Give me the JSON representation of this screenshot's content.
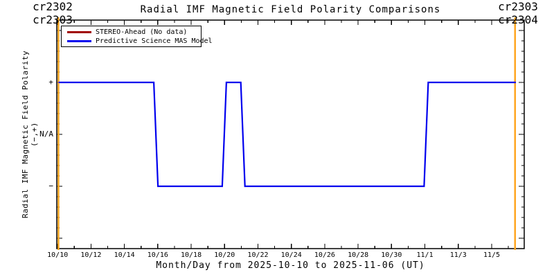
{
  "header": {
    "title": "Radial IMF Magnetic Field Polarity Comparisons",
    "carrington_left": "cr2302 cr2303",
    "carrington_right": "cr2303 cr2304"
  },
  "legend": {
    "items": [
      {
        "label": "STEREO-Ahead (No data)",
        "color": "#a00000"
      },
      {
        "label": "Predictive Science MAS Model",
        "color": "#0000ee"
      }
    ]
  },
  "colors": {
    "carrington_line": "#ffa520",
    "axis": "#000000",
    "background": "#ffffff"
  },
  "chart_data": {
    "type": "line",
    "subtype": "step-polarity",
    "title": "Radial IMF Magnetic Field Polarity Comparisons",
    "xlabel": "Month/Day from 2025-10-10 to 2025-11-06 (UT)",
    "ylabel": "Radial IMF Magnetic Field Polarity (−,+)",
    "x_unit": "days since 2025-10-10 00:00 UT",
    "xlim": [
      -0.05,
      27.95
    ],
    "ylim": [
      -2.2,
      2.2
    ],
    "grid": false,
    "legend_position": "top-left-inside",
    "x_ticks_major": [
      {
        "day": 0,
        "label": "10/10"
      },
      {
        "day": 2,
        "label": "10/12"
      },
      {
        "day": 4,
        "label": "10/14"
      },
      {
        "day": 6,
        "label": "10/16"
      },
      {
        "day": 8,
        "label": "10/18"
      },
      {
        "day": 10,
        "label": "10/20"
      },
      {
        "day": 12,
        "label": "10/22"
      },
      {
        "day": 14,
        "label": "10/24"
      },
      {
        "day": 16,
        "label": "10/26"
      },
      {
        "day": 18,
        "label": "10/28"
      },
      {
        "day": 20,
        "label": "10/30"
      },
      {
        "day": 22,
        "label": "11/1"
      },
      {
        "day": 24,
        "label": "11/3"
      },
      {
        "day": 26,
        "label": "11/5"
      }
    ],
    "x_minor_tick_step_days": 1,
    "y_ticks_major": [
      {
        "value": 2,
        "label": ""
      },
      {
        "value": 1,
        "label": "+"
      },
      {
        "value": 0,
        "label": "N/A"
      },
      {
        "value": -1,
        "label": "−"
      },
      {
        "value": -2,
        "label": ""
      }
    ],
    "y_minor_tick_step": 0.2,
    "carrington_boundaries_days": [
      0.05,
      27.4
    ],
    "series": [
      {
        "name": "STEREO-Ahead (No data)",
        "color": "#a00000",
        "points": []
      },
      {
        "name": "Predictive Science MAS Model",
        "color": "#0000ee",
        "step_points": [
          [
            0.05,
            1
          ],
          [
            5.76,
            1
          ],
          [
            6.01,
            -1
          ],
          [
            9.86,
            -1
          ],
          [
            10.11,
            1
          ],
          [
            10.97,
            1
          ],
          [
            11.22,
            -1
          ],
          [
            21.95,
            -1
          ],
          [
            22.2,
            1
          ],
          [
            27.45,
            1
          ]
        ]
      }
    ]
  }
}
